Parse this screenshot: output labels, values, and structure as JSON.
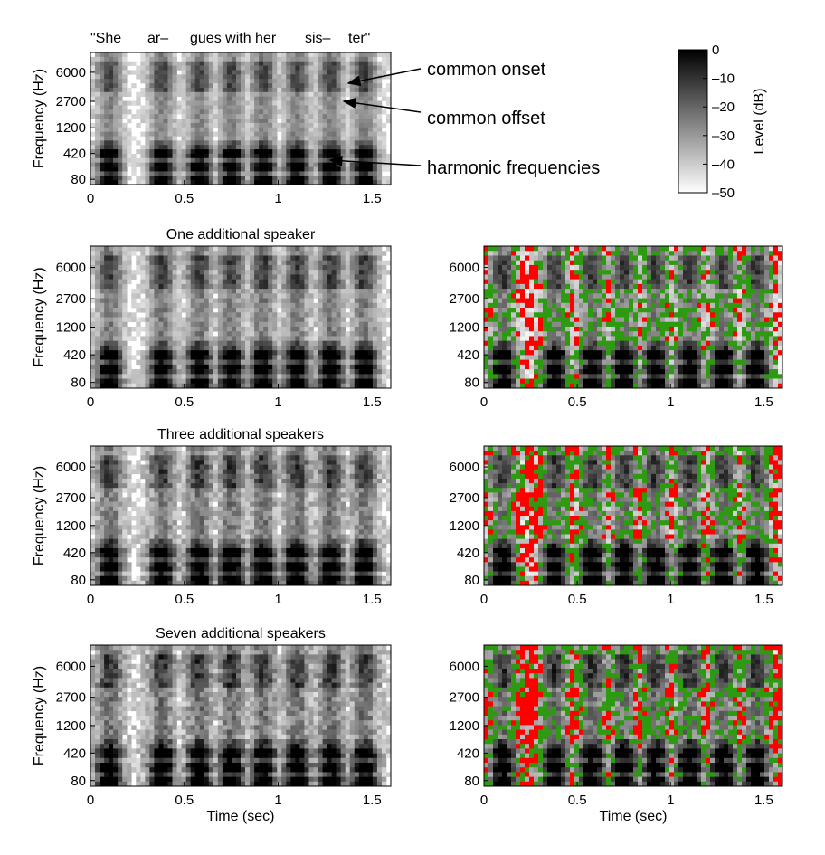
{
  "figure": {
    "word_labels": [
      "\"She",
      "ar–",
      "gues with her",
      "sis–",
      "ter\""
    ],
    "annotations": [
      "common onset",
      "common offset",
      "harmonic frequencies"
    ],
    "colorbar": {
      "label": "Level (dB)",
      "ticks": [
        "0",
        "–10",
        "–20",
        "–30",
        "–40",
        "–50"
      ],
      "range": [
        -50,
        0
      ]
    },
    "mask_colors": {
      "red": "#ff0000",
      "green": "#2e9a12"
    }
  },
  "chart_data": [
    {
      "type": "heatmap",
      "title": "",
      "xlabel": "",
      "ylabel": "Frequency (Hz)",
      "xticks": [
        "0",
        "0.5",
        "1",
        "1.5"
      ],
      "yticks": [
        "80",
        "420",
        "1200",
        "2700",
        "6000"
      ],
      "xlim": [
        0,
        1.6
      ],
      "density": 0.55,
      "mask": false
    },
    {
      "type": "heatmap",
      "title": "One additional speaker",
      "xlabel": "",
      "ylabel": "Frequency (Hz)",
      "xticks": [
        "0",
        "0.5",
        "1",
        "1.5"
      ],
      "yticks": [
        "80",
        "420",
        "1200",
        "2700",
        "6000"
      ],
      "xlim": [
        0,
        1.6
      ],
      "density": 0.7,
      "mask": false
    },
    {
      "type": "heatmap",
      "title": "",
      "xlabel": "",
      "ylabel": "",
      "xticks": [
        "0",
        "0.5",
        "1",
        "1.5"
      ],
      "yticks": [
        "80",
        "420",
        "1200",
        "2700",
        "6000"
      ],
      "xlim": [
        0,
        1.6
      ],
      "density": 0.7,
      "mask": true,
      "red_fraction": 0.22
    },
    {
      "type": "heatmap",
      "title": "Three additional speakers",
      "xlabel": "",
      "ylabel": "Frequency (Hz)",
      "xticks": [
        "0",
        "0.5",
        "1",
        "1.5"
      ],
      "yticks": [
        "80",
        "420",
        "1200",
        "2700",
        "6000"
      ],
      "xlim": [
        0,
        1.6
      ],
      "density": 0.82,
      "mask": false
    },
    {
      "type": "heatmap",
      "title": "",
      "xlabel": "",
      "ylabel": "",
      "xticks": [
        "0",
        "0.5",
        "1",
        "1.5"
      ],
      "yticks": [
        "80",
        "420",
        "1200",
        "2700",
        "6000"
      ],
      "xlim": [
        0,
        1.6
      ],
      "density": 0.82,
      "mask": true,
      "red_fraction": 0.33
    },
    {
      "type": "heatmap",
      "title": "Seven additional speakers",
      "xlabel": "Time (sec)",
      "ylabel": "Frequency (Hz)",
      "xticks": [
        "0",
        "0.5",
        "1",
        "1.5"
      ],
      "yticks": [
        "80",
        "420",
        "1200",
        "2700",
        "6000"
      ],
      "xlim": [
        0,
        1.6
      ],
      "density": 0.9,
      "mask": false
    },
    {
      "type": "heatmap",
      "title": "",
      "xlabel": "Time (sec)",
      "ylabel": "",
      "xticks": [
        "0",
        "0.5",
        "1",
        "1.5"
      ],
      "yticks": [
        "80",
        "420",
        "1200",
        "2700",
        "6000"
      ],
      "xlim": [
        0,
        1.6
      ],
      "density": 0.9,
      "mask": true,
      "red_fraction": 0.45
    }
  ]
}
